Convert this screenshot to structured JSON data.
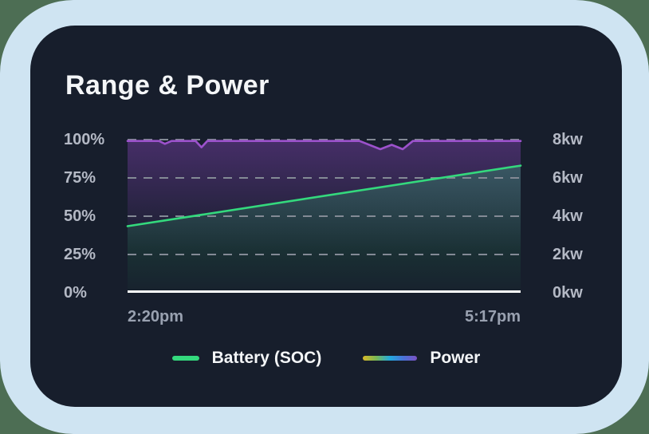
{
  "page": {
    "background_color": "#4d6e54",
    "panel_color": "#cfe4f2",
    "card_color": "#171e2c"
  },
  "card": {
    "title": "Range & Power"
  },
  "chart_data": {
    "type": "line",
    "title": "Range & Power",
    "x_axis": {
      "ticks": [
        "2:20pm",
        "5:17pm"
      ]
    },
    "y_axis_left": {
      "unit": "%",
      "range": [
        0,
        100
      ],
      "ticks": [
        {
          "label": "100%",
          "value": 100
        },
        {
          "label": "75%",
          "value": 75
        },
        {
          "label": "50%",
          "value": 50
        },
        {
          "label": "25%",
          "value": 25
        },
        {
          "label": "0%",
          "value": 0
        }
      ]
    },
    "y_axis_right": {
      "unit": "kw",
      "range": [
        0,
        8
      ],
      "ticks": [
        {
          "label": "8kw",
          "value": 8
        },
        {
          "label": "6kw",
          "value": 6
        },
        {
          "label": "4kw",
          "value": 4
        },
        {
          "label": "2kw",
          "value": 2
        },
        {
          "label": "0kw",
          "value": 0
        }
      ]
    },
    "grid": {
      "dashed_color": "#838a95",
      "baseline_color": "#ffffff"
    },
    "series": [
      {
        "name": "Power",
        "axis": "right",
        "color": "#9c52cc",
        "fill_from": "rgba(128,66,178,0.45)",
        "fill_to": "rgba(128,66,178,0)",
        "fill_fade_end": 140,
        "points": [
          [
            0,
            7.93
          ],
          [
            0.08,
            7.93
          ],
          [
            0.095,
            7.78
          ],
          [
            0.112,
            7.93
          ],
          [
            0.173,
            7.93
          ],
          [
            0.188,
            7.6
          ],
          [
            0.203,
            7.93
          ],
          [
            0.59,
            7.93
          ],
          [
            0.643,
            7.5
          ],
          [
            0.672,
            7.73
          ],
          [
            0.7,
            7.5
          ],
          [
            0.726,
            7.93
          ],
          [
            1,
            7.93
          ]
        ]
      },
      {
        "name": "Battery (SOC)",
        "axis": "left",
        "color": "#34d97d",
        "fill_from": "rgba(52,217,125,0.30)",
        "fill_to": "rgba(52,217,125,0.02)",
        "fill_fade_end": 192,
        "points": [
          [
            0,
            43.5
          ],
          [
            1,
            83
          ]
        ]
      }
    ],
    "legend": [
      {
        "label": "Battery (SOC)",
        "swatch_colors": [
          "#34d97d"
        ]
      },
      {
        "label": "Power",
        "swatch_colors": [
          "#d9b928",
          "#7ab855",
          "#22aade",
          "#4a72d8",
          "#7b52c4"
        ]
      }
    ]
  }
}
